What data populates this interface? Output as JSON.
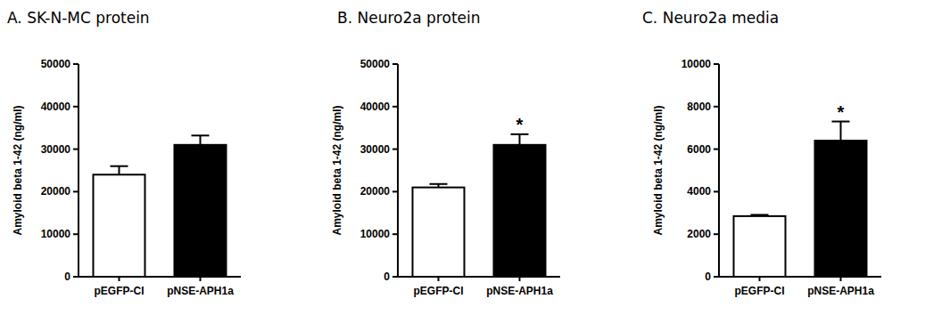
{
  "chart_data": [
    {
      "type": "bar",
      "title": "A. SK-N-MC protein",
      "y_label": "Amyloid beta 1-42 (ng/ml)",
      "categories": [
        "pEGFP-CI",
        "pNSE-APH1a"
      ],
      "values": [
        24000,
        31000
      ],
      "errors": [
        2000,
        2200
      ],
      "colors": [
        "#ffffff",
        "#000000"
      ],
      "ylim": [
        0,
        50000
      ],
      "yticks": [
        0,
        10000,
        20000,
        30000,
        40000,
        50000
      ],
      "grid": false
    },
    {
      "type": "bar",
      "title": "B. Neuro2a protein",
      "y_label": "Amyloid beta 1-42 (ng/ml)",
      "categories": [
        "pEGFP-CI",
        "pNSE-APH1a"
      ],
      "values": [
        21000,
        31000
      ],
      "errors": [
        800,
        2500
      ],
      "significance": [
        null,
        "*"
      ],
      "colors": [
        "#ffffff",
        "#000000"
      ],
      "ylim": [
        0,
        50000
      ],
      "yticks": [
        0,
        10000,
        20000,
        30000,
        40000,
        50000
      ],
      "grid": false
    },
    {
      "type": "bar",
      "title": "C. Neuro2a media",
      "y_label": "Amyloid beta 1-42 (ng/ml)",
      "categories": [
        "pEGFP-CI",
        "pNSE-APH1a"
      ],
      "values": [
        2850,
        6400
      ],
      "errors": [
        60,
        900
      ],
      "significance": [
        null,
        "*"
      ],
      "colors": [
        "#ffffff",
        "#000000"
      ],
      "ylim": [
        0,
        10000
      ],
      "yticks": [
        0,
        2000,
        4000,
        6000,
        8000,
        10000
      ],
      "grid": false
    }
  ]
}
